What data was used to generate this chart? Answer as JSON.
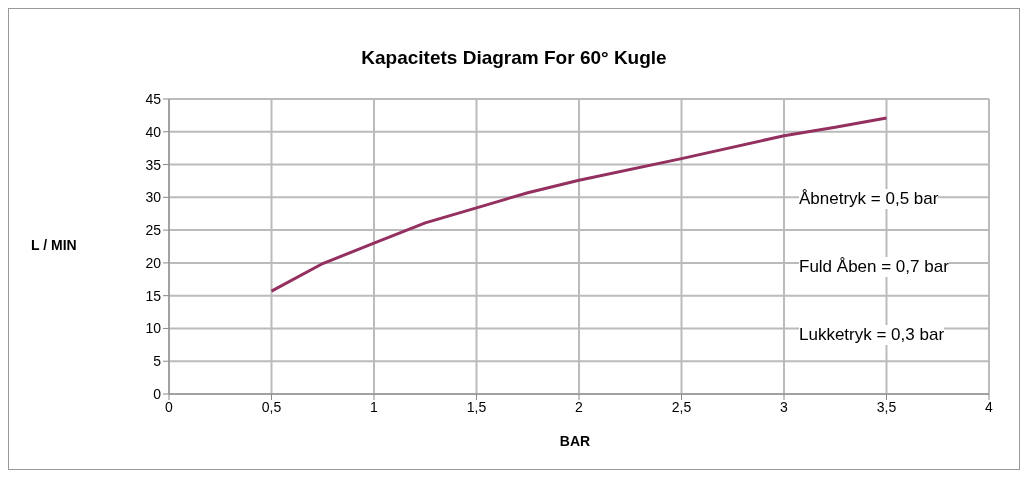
{
  "chart_data": {
    "type": "line",
    "title": "Kapacitets Diagram For 60° Kugle",
    "xlabel": "BAR",
    "ylabel": "L / MIN",
    "x": [
      0.5,
      0.75,
      1,
      1.25,
      1.5,
      1.75,
      2,
      2.5,
      3,
      3.25,
      3.5
    ],
    "series": [
      {
        "color": "#93305f",
        "values": [
          15.7,
          19.9,
          23.0,
          26.1,
          28.4,
          30.7,
          32.6,
          35.9,
          39.4,
          40.7,
          42.1
        ]
      }
    ],
    "xlim": [
      0,
      4
    ],
    "xticks": [
      0,
      {
        "value": 0.5,
        "label": "0,5"
      },
      1,
      {
        "value": 1.5,
        "label": "1,5"
      },
      2,
      {
        "value": 2.5,
        "label": "2,5"
      },
      3,
      {
        "value": 3.5,
        "label": "3,5"
      },
      4
    ],
    "ylim": [
      0,
      45
    ],
    "yticks": [
      0,
      5,
      10,
      15,
      20,
      25,
      30,
      35,
      40,
      45
    ],
    "grid": true,
    "marker": "none",
    "line_style": "solid",
    "annotations": [
      "Åbnetryk = 0,5 bar",
      "Fuld Åben = 0,7 bar",
      "Lukketryk = 0,3 bar"
    ]
  }
}
